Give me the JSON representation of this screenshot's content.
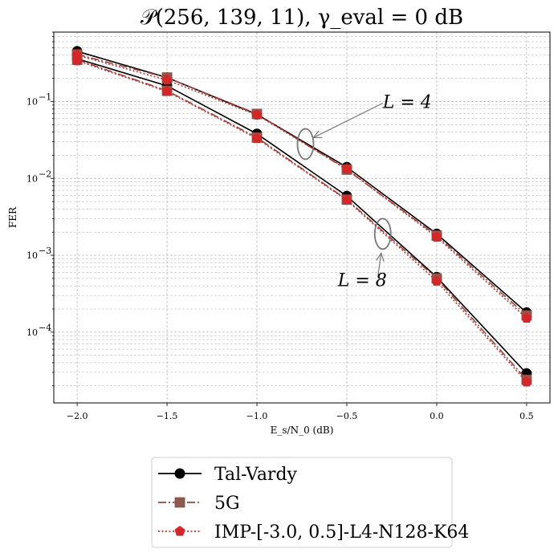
{
  "chart_data": {
    "type": "line",
    "title": "𝒫(256, 139, 11),  γ_eval = 0 dB",
    "xlabel": "E_s/N_0 (dB)",
    "ylabel": "FER",
    "xlim": [
      -2.13,
      0.63
    ],
    "ylim": [
      1.2e-05,
      0.8
    ],
    "yscale": "log",
    "grid": true,
    "x_ticks": [
      -2.0,
      -1.5,
      -1.0,
      -0.5,
      0.0,
      0.5
    ],
    "x_tick_labels": [
      "−2.0",
      "−1.5",
      "−1.0",
      "−0.5",
      "0.0",
      "0.5"
    ],
    "y_ticks": [
      0.0001,
      0.001,
      0.01,
      0.1
    ],
    "y_tick_labels": [
      {
        "base": "10",
        "exp": "−4"
      },
      {
        "base": "10",
        "exp": "−3"
      },
      {
        "base": "10",
        "exp": "−2"
      },
      {
        "base": "10",
        "exp": "−1"
      }
    ],
    "legend_position": "below",
    "legend": [
      {
        "label": "Tal-Vardy",
        "color": "#000000",
        "dash": "solid",
        "marker": "circle"
      },
      {
        "label": "5G",
        "color": "#8b4a42",
        "dash": "dashdot",
        "marker": "square"
      },
      {
        "label": "IMP-[-3.0, 0.5]-L4-N128-K64",
        "color": "#d62728",
        "dash": "dotted",
        "marker": "pentagon"
      }
    ],
    "series": [
      {
        "legend": "Tal-Vardy",
        "group": "L=4",
        "color": "#000000",
        "dash": "solid",
        "marker": "circle",
        "x": [
          -2.0,
          -1.5,
          -1.0,
          -0.5,
          0.0,
          0.5
        ],
        "y": [
          0.45,
          0.205,
          0.068,
          0.014,
          0.0019,
          0.00018
        ]
      },
      {
        "legend": "Tal-Vardy",
        "group": "L=8",
        "color": "#000000",
        "dash": "solid",
        "marker": "circle",
        "x": [
          -2.0,
          -1.5,
          -1.0,
          -0.5,
          0.0,
          0.5
        ],
        "y": [
          0.36,
          0.16,
          0.038,
          0.0059,
          0.00052,
          2.9e-05
        ]
      },
      {
        "legend": "5G",
        "group": "L=4",
        "color": "#8b4a42",
        "dash": "dashdot",
        "marker": "square",
        "x": [
          -2.0,
          -1.5,
          -1.0,
          -0.5,
          0.0,
          0.5
        ],
        "y": [
          0.41,
          0.205,
          0.069,
          0.013,
          0.0018,
          0.000165
        ]
      },
      {
        "legend": "5G",
        "group": "L=8",
        "color": "#8b4a42",
        "dash": "dashdot",
        "marker": "square",
        "x": [
          -2.0,
          -1.5,
          -1.0,
          -0.5,
          0.0,
          0.5
        ],
        "y": [
          0.35,
          0.138,
          0.034,
          0.0053,
          0.0005,
          2.4e-05
        ]
      },
      {
        "legend": "IMP-[-3.0, 0.5]-L4-N128-K64",
        "group": "L=4",
        "color": "#d62728",
        "dash": "dotted",
        "marker": "pentagon",
        "x": [
          -2.0,
          -1.5,
          -1.0,
          -0.5,
          0.0,
          0.5
        ],
        "y": [
          0.4,
          0.19,
          0.067,
          0.0132,
          0.00172,
          0.000152
        ]
      },
      {
        "legend": "IMP-[-3.0, 0.5]-L4-N128-K64",
        "group": "L=8",
        "color": "#d62728",
        "dash": "dotted",
        "marker": "pentagon",
        "x": [
          -2.0,
          -1.5,
          -1.0,
          -0.5,
          0.0,
          0.5
        ],
        "y": [
          0.34,
          0.135,
          0.033,
          0.0052,
          0.00046,
          2.25e-05
        ]
      }
    ],
    "annotations": [
      {
        "text": "L = 4",
        "ellipse_center": [
          -0.73,
          0.028
        ],
        "text_at": [
          -0.3,
          0.1
        ]
      },
      {
        "text": "L = 8",
        "ellipse_center": [
          -0.3,
          0.0019
        ],
        "text_at": [
          -0.55,
          0.00048
        ]
      }
    ]
  }
}
